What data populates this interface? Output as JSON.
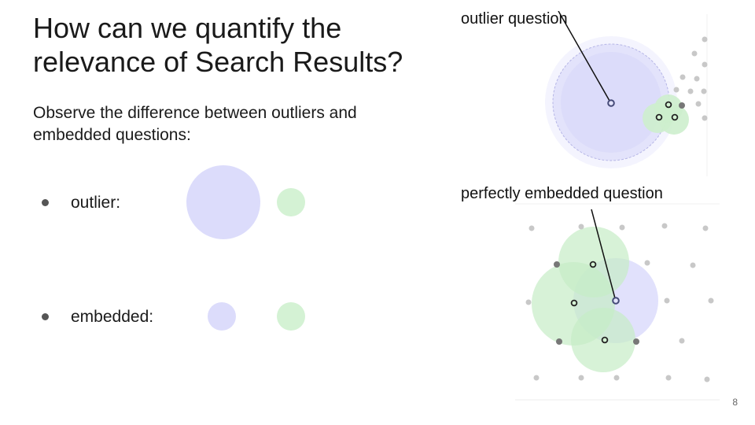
{
  "slide": {
    "title_line1": "How can we quantify the",
    "title_line2": "relevance of Search Results?",
    "subtitle_line1": "Observe the difference between outliers and",
    "subtitle_line2": "embedded questions:",
    "page_number": "8"
  },
  "bullets": [
    {
      "label": "outlier:"
    },
    {
      "label": "embedded:"
    }
  ],
  "callouts": {
    "outlier": "outlier question",
    "embedded": "perfectly embedded question"
  },
  "colors": {
    "question_circle": "#dcdcfb",
    "neighbor_circle": "#d4f2d4",
    "question_point": "#5a5f8c",
    "neighbor_point": "#222222",
    "background_point": "#c8c8c8"
  }
}
